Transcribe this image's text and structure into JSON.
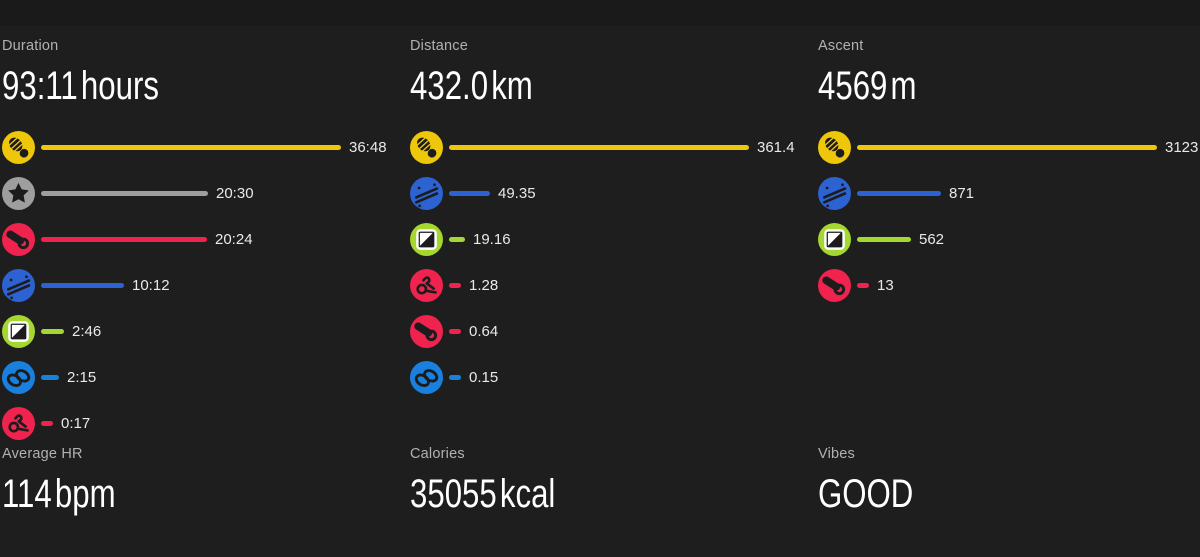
{
  "theme": {
    "background": "#1e1e1e",
    "glyph_dark": "#1c1c1c",
    "label_gray": "#b1b1b1",
    "value_white": "#ffffff"
  },
  "columns": [
    {
      "id": "duration",
      "label": "Duration",
      "value": "93:11",
      "unit": "hours",
      "rows": [
        {
          "activity": "trekking",
          "icon": "shoe-print-icon",
          "color": "#eec60a",
          "value": 2208,
          "display": "36:48"
        },
        {
          "activity": "unspecified-sport",
          "icon": "star-icon",
          "color": "#9e9e9e",
          "value": 1230,
          "display": "20:30"
        },
        {
          "activity": "treadmill",
          "icon": "treadmill-icon",
          "color": "#f0234f",
          "value": 1224,
          "display": "20:24"
        },
        {
          "activity": "cross-country-skiing",
          "icon": "crossed-skis-icon",
          "color": "#2d62d2",
          "value": 612,
          "display": "10:12"
        },
        {
          "activity": "orienteering",
          "icon": "control-flag-icon",
          "color": "#a4d730",
          "value": 166,
          "display": "2:46"
        },
        {
          "activity": "snowshoeing",
          "icon": "snowshoes-icon",
          "color": "#1a80dd",
          "value": 135,
          "display": "2:15"
        },
        {
          "activity": "kicksledding",
          "icon": "kicksled-icon",
          "color": "#f0234f",
          "value": 17,
          "display": "0:17"
        }
      ]
    },
    {
      "id": "distance",
      "label": "Distance",
      "value": "432.0",
      "unit": "km",
      "rows": [
        {
          "activity": "trekking",
          "icon": "shoe-print-icon",
          "color": "#eec60a",
          "value": 361.4,
          "display": "361.4"
        },
        {
          "activity": "cross-country-skiing",
          "icon": "crossed-skis-icon",
          "color": "#2d62d2",
          "value": 49.35,
          "display": "49.35"
        },
        {
          "activity": "orienteering",
          "icon": "control-flag-icon",
          "color": "#a4d730",
          "value": 19.16,
          "display": "19.16"
        },
        {
          "activity": "kicksledding",
          "icon": "kicksled-icon",
          "color": "#f0234f",
          "value": 1.28,
          "display": "1.28"
        },
        {
          "activity": "treadmill",
          "icon": "treadmill-icon",
          "color": "#f0234f",
          "value": 0.64,
          "display": "0.64"
        },
        {
          "activity": "snowshoeing",
          "icon": "snowshoes-icon",
          "color": "#1a80dd",
          "value": 0.15,
          "display": "0.15"
        }
      ]
    },
    {
      "id": "ascent",
      "label": "Ascent",
      "value": "4569",
      "unit": "m",
      "rows": [
        {
          "activity": "trekking",
          "icon": "shoe-print-icon",
          "color": "#eec60a",
          "value": 3123,
          "display": "3123"
        },
        {
          "activity": "cross-country-skiing",
          "icon": "crossed-skis-icon",
          "color": "#2d62d2",
          "value": 871,
          "display": "871"
        },
        {
          "activity": "orienteering",
          "icon": "control-flag-icon",
          "color": "#a4d730",
          "value": 562,
          "display": "562"
        },
        {
          "activity": "treadmill",
          "icon": "treadmill-icon",
          "color": "#f0234f",
          "value": 13,
          "display": "13"
        }
      ]
    }
  ],
  "stats": [
    {
      "id": "avg-hr",
      "label": "Average HR",
      "value": "114",
      "unit": "bpm"
    },
    {
      "id": "calories",
      "label": "Calories",
      "value": "35055",
      "unit": "kcal"
    },
    {
      "id": "vibes",
      "label": "Vibes",
      "value": "GOOD",
      "unit": ""
    }
  ],
  "chart_data": [
    {
      "type": "bar",
      "title": "Duration (hours:minutes) by activity",
      "categories": [
        "trekking",
        "unspecified-sport",
        "treadmill",
        "cross-country-skiing",
        "orienteering",
        "snowshoeing",
        "kicksledding"
      ],
      "values": [
        2208,
        1230,
        1224,
        612,
        166,
        135,
        17
      ],
      "value_labels": [
        "36:48",
        "20:30",
        "20:24",
        "10:12",
        "2:46",
        "2:15",
        "0:17"
      ],
      "xlabel": "",
      "ylabel": "minutes",
      "legend": "off",
      "grid": "off"
    },
    {
      "type": "bar",
      "title": "Distance (km) by activity",
      "categories": [
        "trekking",
        "cross-country-skiing",
        "orienteering",
        "kicksledding",
        "treadmill",
        "snowshoeing"
      ],
      "values": [
        361.4,
        49.35,
        19.16,
        1.28,
        0.64,
        0.15
      ],
      "value_labels": [
        "361.4",
        "49.35",
        "19.16",
        "1.28",
        "0.64",
        "0.15"
      ],
      "xlabel": "",
      "ylabel": "km",
      "legend": "off",
      "grid": "off"
    },
    {
      "type": "bar",
      "title": "Ascent (m) by activity",
      "categories": [
        "trekking",
        "cross-country-skiing",
        "orienteering",
        "treadmill"
      ],
      "values": [
        3123,
        871,
        562,
        13
      ],
      "value_labels": [
        "3123",
        "871",
        "562",
        "13"
      ],
      "xlabel": "",
      "ylabel": "m",
      "legend": "off",
      "grid": "off"
    }
  ]
}
